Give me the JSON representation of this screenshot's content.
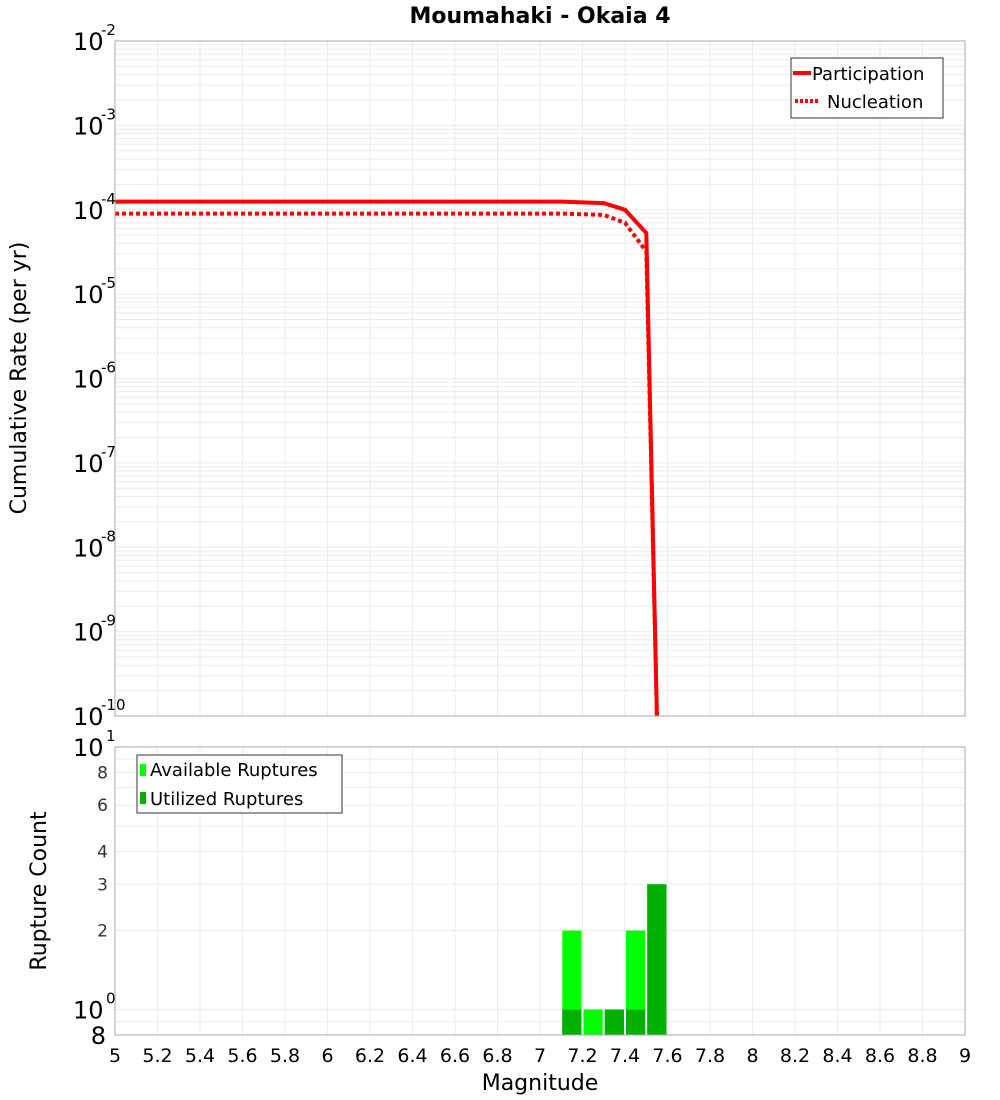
{
  "title": "Moumahaki - Okaia 4",
  "colors": {
    "participation": "#ff0000",
    "nucleation": "#ff0000",
    "available": "#00ff00",
    "utilized": "#00b000",
    "grid": "#ebebeb",
    "frame": "#aaaaaa"
  },
  "top_plot": {
    "ylabel": "Cumulative Rate (per yr)",
    "ytick_base": "10",
    "yticks": [
      {
        "exp": "-2",
        "value": 0.01
      },
      {
        "exp": "-3",
        "value": 0.001
      },
      {
        "exp": "-4",
        "value": 0.0001
      },
      {
        "exp": "-5",
        "value": 1e-05
      },
      {
        "exp": "-6",
        "value": 1e-06
      },
      {
        "exp": "-7",
        "value": 1e-07
      },
      {
        "exp": "-8",
        "value": 1e-08
      },
      {
        "exp": "-9",
        "value": 1e-09
      },
      {
        "exp": "-10",
        "value": 1e-10
      }
    ],
    "legend": [
      {
        "label": "Participation",
        "style": "solid"
      },
      {
        "label": "Nucleation",
        "style": "dotted"
      }
    ]
  },
  "bottom_plot": {
    "ylabel": "Rupture Count",
    "xlabel": "Magnitude",
    "yticks_major": [
      {
        "base": "10",
        "exp": "1",
        "value": 10
      },
      {
        "base": "10",
        "exp": "0",
        "value": 1
      }
    ],
    "yticks_minor": [
      {
        "label": "8",
        "value": 8
      },
      {
        "label": "6",
        "value": 6
      },
      {
        "label": "4",
        "value": 4
      },
      {
        "label": "3",
        "value": 3
      },
      {
        "label": "2",
        "value": 2
      },
      {
        "label": "8",
        "value": 0.8
      }
    ],
    "legend": [
      {
        "label": "Available Ruptures"
      },
      {
        "label": "Utilized Ruptures"
      }
    ]
  },
  "xticks": [
    "5",
    "5.2",
    "5.4",
    "5.6",
    "5.8",
    "6",
    "6.2",
    "6.4",
    "6.6",
    "6.8",
    "7",
    "7.2",
    "7.4",
    "7.6",
    "7.8",
    "8",
    "8.2",
    "8.4",
    "8.6",
    "8.8",
    "9"
  ],
  "chart_data": [
    {
      "type": "line",
      "title": "Moumahaki - Okaia 4",
      "xlabel": "Magnitude",
      "ylabel": "Cumulative Rate (per yr)",
      "xlim": [
        5,
        9
      ],
      "ylim": [
        1e-10,
        0.01
      ],
      "yscale": "log",
      "grid": true,
      "legend_position": "upper right",
      "series": [
        {
          "name": "Participation",
          "style": "solid",
          "x": [
            5.0,
            7.1,
            7.3,
            7.4,
            7.5,
            7.55
          ],
          "y": [
            0.000125,
            0.000125,
            0.00012,
            0.0001,
            5.3e-05,
            1e-10
          ]
        },
        {
          "name": "Nucleation",
          "style": "dotted",
          "x": [
            5.0,
            7.1,
            7.3,
            7.4,
            7.5,
            7.55
          ],
          "y": [
            9e-05,
            9e-05,
            8.7e-05,
            7e-05,
            3.2e-05,
            1e-10
          ]
        }
      ]
    },
    {
      "type": "bar",
      "xlabel": "Magnitude",
      "ylabel": "Rupture Count",
      "xlim": [
        5,
        9
      ],
      "ylim": [
        0.8,
        10
      ],
      "yscale": "log",
      "grid": true,
      "legend_position": "upper left",
      "bin_width": 0.1,
      "categories": [
        7.15,
        7.25,
        7.35,
        7.45,
        7.55
      ],
      "series": [
        {
          "name": "Available Ruptures",
          "values": [
            2,
            1,
            1,
            2,
            3
          ]
        },
        {
          "name": "Utilized Ruptures",
          "values": [
            1,
            0,
            1,
            1,
            3
          ]
        }
      ]
    }
  ]
}
